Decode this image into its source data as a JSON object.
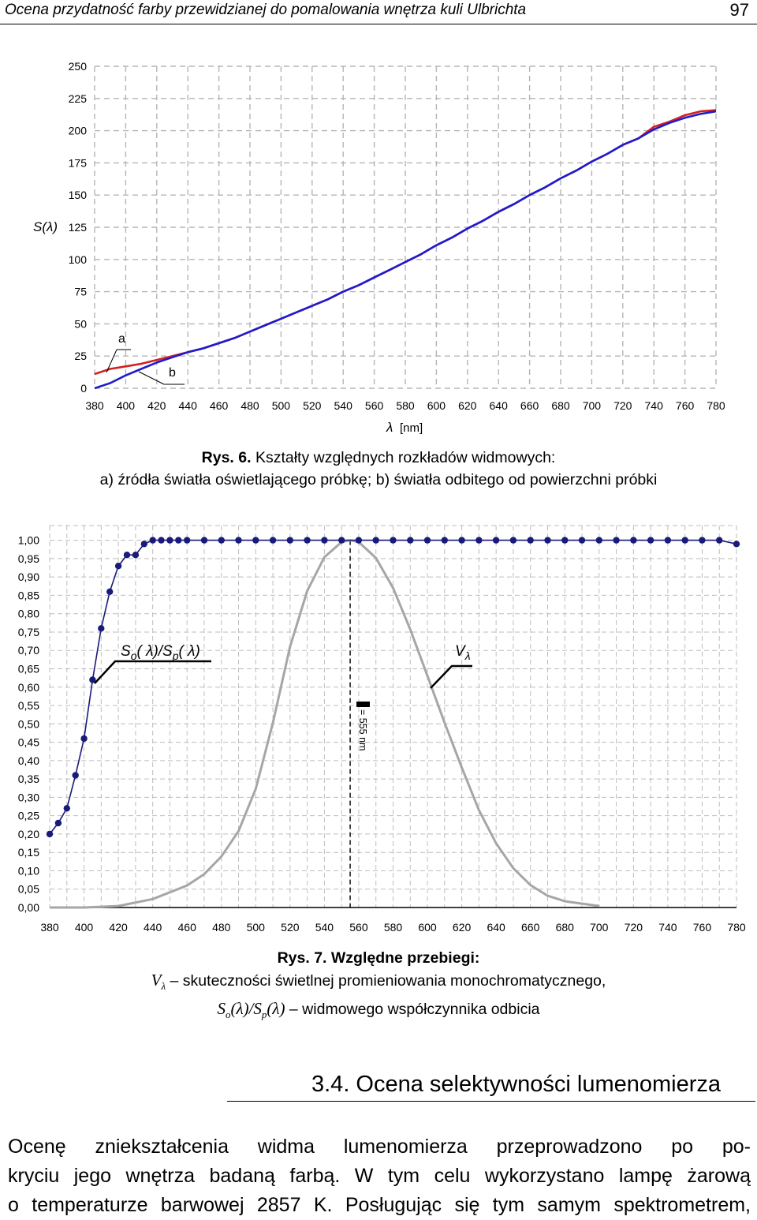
{
  "header": {
    "title": "Ocena przydatność farby przewidzianej do pomalowania wnętrza kuli Ulbrichta",
    "page_number": "97"
  },
  "figure6": {
    "caption_label": "Rys. 6.",
    "caption_text": "Kształty względnych rozkładów widmowych:",
    "caption_line2": "a) źródła światła oświetlającego próbkę; b) światła odbitego od powierzchni próbki",
    "ylabel": "S(λ)",
    "xlabel_symbol": "λ",
    "xlabel_unit": "[nm]",
    "curve_label_a": "a",
    "curve_label_b": "b",
    "colors": {
      "a": "#d42020",
      "b": "#1c1ccf"
    }
  },
  "figure7": {
    "caption_label": "Rys. 7.",
    "caption_text": "Względne przebiegi:",
    "caption_line2_symbol": "V",
    "caption_line2_sub": "λ",
    "caption_line2_text": "– skuteczności świetlnej promieniowania monochromatycznego,",
    "caption_line3_symbol": "S",
    "caption_line3_sub1": "o",
    "caption_line3_mid": "(λ)/S",
    "caption_line3_sub2": "p",
    "caption_line3_end": "(λ)",
    "caption_line3_text": "– widmowego współczynnika odbicia",
    "label_ratio_s": "S",
    "label_ratio_o": "o",
    "label_ratio_mid": "( λ)/S",
    "label_ratio_p": "p",
    "label_ratio_end": "( λ)",
    "label_v": "V",
    "label_v_sub": "λ",
    "peak_label": "= 555 nm",
    "colors": {
      "ratio": "#1a1a7a",
      "v": "#a6a6a6"
    }
  },
  "section": {
    "heading": "3.4. Ocena selektywności lumenomierza"
  },
  "body": {
    "lines": [
      "Ocenę zniekształcenia widma lumenomierza przeprowadzono po po-",
      "kryciu jego wnętrza badaną farbą. W tym celu wykorzystano lampę żarową",
      "o temperaturze barwowej 2857 K. Posługując się tym samym spektrometrem,"
    ]
  },
  "chart_data": [
    {
      "type": "line",
      "x_ticks": [
        380,
        400,
        420,
        440,
        460,
        480,
        500,
        520,
        540,
        560,
        580,
        600,
        620,
        640,
        660,
        680,
        700,
        720,
        740,
        760,
        780
      ],
      "y_ticks": [
        0,
        25,
        50,
        75,
        100,
        125,
        150,
        175,
        200,
        225,
        250
      ],
      "xlim": [
        380,
        780
      ],
      "ylim": [
        0,
        250
      ],
      "grid": true,
      "series": [
        {
          "name": "a",
          "x": [
            380,
            390,
            400,
            410,
            420,
            430,
            440,
            450,
            460,
            470,
            480,
            490,
            500,
            510,
            520,
            530,
            540,
            550,
            560,
            570,
            580,
            590,
            600,
            610,
            620,
            630,
            640,
            650,
            660,
            670,
            680,
            690,
            700,
            710,
            720,
            730,
            740,
            750,
            760,
            770,
            780
          ],
          "y": [
            11,
            15,
            17,
            19,
            22,
            25,
            28,
            31,
            35,
            39,
            44,
            49,
            54,
            59,
            64,
            69,
            75,
            80,
            86,
            92,
            98,
            104,
            111,
            117,
            124,
            130,
            137,
            143,
            150,
            156,
            163,
            169,
            176,
            182,
            189,
            194,
            203,
            207,
            212,
            215,
            216
          ]
        },
        {
          "name": "b",
          "x": [
            380,
            390,
            400,
            410,
            420,
            430,
            440,
            450,
            460,
            470,
            480,
            490,
            500,
            510,
            520,
            530,
            540,
            550,
            560,
            570,
            580,
            590,
            600,
            610,
            620,
            630,
            640,
            650,
            660,
            670,
            680,
            690,
            700,
            710,
            720,
            730,
            740,
            750,
            760,
            770,
            780
          ],
          "y": [
            0,
            4,
            10,
            15,
            20,
            24,
            28,
            31,
            35,
            39,
            44,
            49,
            54,
            59,
            64,
            69,
            75,
            80,
            86,
            92,
            98,
            104,
            111,
            117,
            124,
            130,
            137,
            143,
            150,
            156,
            163,
            169,
            176,
            182,
            189,
            194,
            201,
            206,
            210,
            213,
            215
          ]
        }
      ]
    },
    {
      "type": "line",
      "x_ticks": [
        380,
        400,
        420,
        440,
        460,
        480,
        500,
        520,
        540,
        560,
        580,
        600,
        620,
        640,
        660,
        680,
        700,
        720,
        740,
        760,
        780
      ],
      "y_ticks": [
        "0,00",
        "0,05",
        "0,10",
        "0,15",
        "0,20",
        "0,25",
        "0,30",
        "0,35",
        "0,40",
        "0,45",
        "0,50",
        "0,55",
        "0,60",
        "0,65",
        "0,70",
        "0,75",
        "0,80",
        "0,85",
        "0,90",
        "0,95",
        "1,00"
      ],
      "xlim": [
        380,
        780
      ],
      "ylim": [
        0,
        1.0
      ],
      "grid": true,
      "marker_line": 555,
      "series": [
        {
          "name": "So(λ)/Sp(λ)",
          "x": [
            380,
            385,
            390,
            395,
            400,
            405,
            410,
            415,
            420,
            425,
            430,
            435,
            440,
            445,
            450,
            455,
            460,
            470,
            480,
            490,
            500,
            510,
            520,
            530,
            540,
            550,
            560,
            570,
            580,
            590,
            600,
            610,
            620,
            630,
            640,
            650,
            660,
            670,
            680,
            690,
            700,
            710,
            720,
            730,
            740,
            750,
            760,
            770,
            780
          ],
          "y": [
            0.2,
            0.23,
            0.27,
            0.36,
            0.46,
            0.62,
            0.76,
            0.86,
            0.93,
            0.96,
            0.96,
            0.99,
            1.0,
            1.0,
            1.0,
            1.0,
            1.0,
            1.0,
            1.0,
            1.0,
            1.0,
            1.0,
            1.0,
            1.0,
            1.0,
            1.0,
            1.0,
            1.0,
            1.0,
            1.0,
            1.0,
            1.0,
            1.0,
            1.0,
            1.0,
            1.0,
            1.0,
            1.0,
            1.0,
            1.0,
            1.0,
            1.0,
            1.0,
            1.0,
            1.0,
            1.0,
            1.0,
            1.0,
            0.99
          ]
        },
        {
          "name": "Vλ",
          "x": [
            380,
            400,
            420,
            440,
            460,
            470,
            480,
            490,
            500,
            510,
            520,
            530,
            540,
            550,
            555,
            560,
            570,
            580,
            590,
            600,
            610,
            620,
            630,
            640,
            650,
            660,
            670,
            680,
            700
          ],
          "y": [
            0,
            0,
            0.004,
            0.023,
            0.06,
            0.091,
            0.139,
            0.208,
            0.323,
            0.503,
            0.71,
            0.862,
            0.954,
            0.995,
            1.0,
            0.995,
            0.952,
            0.87,
            0.757,
            0.631,
            0.503,
            0.381,
            0.265,
            0.175,
            0.107,
            0.061,
            0.032,
            0.017,
            0.004
          ]
        }
      ]
    }
  ]
}
